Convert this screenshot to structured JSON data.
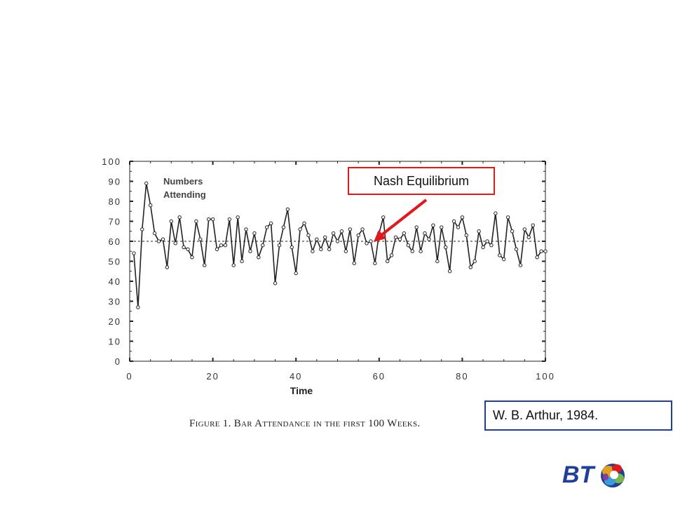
{
  "chart_data": {
    "type": "line",
    "xlabel": "Time",
    "legend_label_line1": "Numbers",
    "legend_label_line2": "Attending",
    "xlim": [
      0,
      100
    ],
    "ylim": [
      0,
      100
    ],
    "xticks": [
      0,
      20,
      40,
      60,
      80,
      100
    ],
    "yticks": [
      0,
      10,
      20,
      30,
      40,
      50,
      60,
      70,
      80,
      90,
      100
    ],
    "equilibrium_line": 60,
    "x": [
      1,
      2,
      3,
      4,
      5,
      6,
      7,
      8,
      9,
      10,
      11,
      12,
      13,
      14,
      15,
      16,
      17,
      18,
      19,
      20,
      21,
      22,
      23,
      24,
      25,
      26,
      27,
      28,
      29,
      30,
      31,
      32,
      33,
      34,
      35,
      36,
      37,
      38,
      39,
      40,
      41,
      42,
      43,
      44,
      45,
      46,
      47,
      48,
      49,
      50,
      51,
      52,
      53,
      54,
      55,
      56,
      57,
      58,
      59,
      60,
      61,
      62,
      63,
      64,
      65,
      66,
      67,
      68,
      69,
      70,
      71,
      72,
      73,
      74,
      75,
      76,
      77,
      78,
      79,
      80,
      81,
      82,
      83,
      84,
      85,
      86,
      87,
      88,
      89,
      90,
      91,
      92,
      93,
      94,
      95,
      96,
      97,
      98,
      99,
      100
    ],
    "values": [
      54,
      27,
      66,
      89,
      78,
      64,
      60,
      61,
      47,
      70,
      59,
      72,
      57,
      56,
      52,
      70,
      61,
      48,
      71,
      71,
      56,
      58,
      58,
      71,
      48,
      72,
      50,
      66,
      55,
      64,
      52,
      58,
      67,
      69,
      39,
      58,
      67,
      76,
      57,
      44,
      66,
      69,
      63,
      55,
      61,
      56,
      62,
      56,
      64,
      60,
      65,
      55,
      66,
      49,
      63,
      66,
      59,
      60,
      49,
      64,
      72,
      50,
      53,
      62,
      61,
      64,
      58,
      55,
      67,
      55,
      64,
      61,
      68,
      50,
      67,
      57,
      45,
      70,
      67,
      72,
      63,
      47,
      50,
      65,
      57,
      60,
      58,
      74,
      53,
      51,
      72,
      65,
      56,
      48,
      66,
      62,
      68,
      52,
      55,
      55
    ]
  },
  "callout": {
    "text": "Nash Equilibrium",
    "border_color": "#e0191c"
  },
  "caption": {
    "text": "Figure 1.  Bar Attendance in the first 100 Weeks."
  },
  "citation": {
    "text": "W. B. Arthur, 1984.",
    "border_color": "#1f3f9a"
  },
  "logo": {
    "text": "BT",
    "color": "#1f3f9a"
  }
}
